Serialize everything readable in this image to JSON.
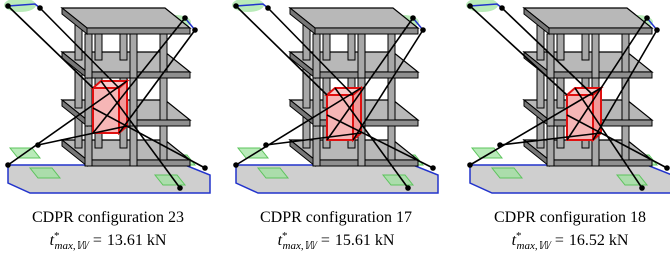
{
  "panels": [
    {
      "caption": "CDPR configuration 23",
      "symbol": "t",
      "superscript": "*",
      "subscript": "max,𝕎",
      "equals": "=",
      "value": "13.61 kN"
    },
    {
      "caption": "CDPR configuration 17",
      "symbol": "t",
      "superscript": "*",
      "subscript": "max,𝕎",
      "equals": "=",
      "value": "15.61 kN"
    },
    {
      "caption": "CDPR configuration 18",
      "symbol": "t",
      "superscript": "*",
      "subscript": "max,𝕎",
      "equals": "=",
      "value": "16.52 kN"
    }
  ]
}
